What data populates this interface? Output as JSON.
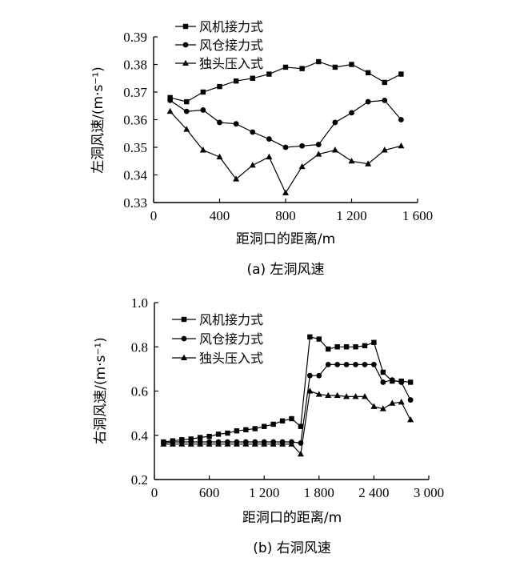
{
  "chart_data": [
    {
      "id": "left",
      "type": "line",
      "xlabel": "距洞口的距离/m",
      "ylabel": "左洞风速/(m·s⁻¹)",
      "caption": "(a) 左洞风速",
      "xlim": [
        0,
        1600
      ],
      "ylim": [
        0.33,
        0.39
      ],
      "xticks": [
        0,
        400,
        800,
        1200,
        1600
      ],
      "xtick_labels": [
        "0",
        "400",
        "800",
        "1 200",
        "1 600"
      ],
      "yticks": [
        0.33,
        0.34,
        0.35,
        0.36,
        0.37,
        0.38,
        0.39
      ],
      "ytick_labels": [
        "0.33",
        "0.34",
        "0.35",
        "0.36",
        "0.37",
        "0.38",
        "0.39"
      ],
      "legend_position": "top-left",
      "series": [
        {
          "name": "风机接力式",
          "marker": "square",
          "x": [
            100,
            200,
            300,
            400,
            500,
            600,
            700,
            800,
            900,
            1000,
            1100,
            1200,
            1300,
            1400,
            1500
          ],
          "y": [
            0.368,
            0.3665,
            0.37,
            0.372,
            0.374,
            0.375,
            0.3765,
            0.379,
            0.3785,
            0.381,
            0.379,
            0.38,
            0.377,
            0.3735,
            0.3765
          ]
        },
        {
          "name": "风仓接力式",
          "marker": "circle",
          "x": [
            100,
            200,
            300,
            400,
            500,
            600,
            700,
            800,
            900,
            1000,
            1100,
            1200,
            1300,
            1400,
            1500
          ],
          "y": [
            0.367,
            0.363,
            0.3635,
            0.359,
            0.3585,
            0.3555,
            0.353,
            0.35,
            0.3505,
            0.351,
            0.359,
            0.3625,
            0.3665,
            0.367,
            0.36
          ]
        },
        {
          "name": "独头压入式",
          "marker": "triangle",
          "x": [
            100,
            200,
            300,
            400,
            500,
            600,
            700,
            800,
            900,
            1000,
            1100,
            1200,
            1300,
            1400,
            1500
          ],
          "y": [
            0.363,
            0.3565,
            0.349,
            0.3465,
            0.3385,
            0.3435,
            0.3465,
            0.3335,
            0.343,
            0.3475,
            0.349,
            0.345,
            0.344,
            0.349,
            0.3505
          ]
        }
      ]
    },
    {
      "id": "right",
      "type": "line",
      "xlabel": "距洞口的距离/m",
      "ylabel": "右洞风速/(m·s⁻¹)",
      "caption": "(b) 右洞风速",
      "xlim": [
        0,
        3000
      ],
      "ylim": [
        0.2,
        1.0
      ],
      "xticks": [
        0,
        600,
        1200,
        1800,
        2400,
        3000
      ],
      "xtick_labels": [
        "0",
        "600",
        "1 200",
        "1 800",
        "2 400",
        "3 000"
      ],
      "yticks": [
        0.2,
        0.4,
        0.6,
        0.8,
        1.0
      ],
      "ytick_labels": [
        "0.2",
        "0.4",
        "0.6",
        "0.8",
        "1.0"
      ],
      "legend_position": "top-center",
      "series": [
        {
          "name": "风机接力式",
          "marker": "square",
          "x": [
            100,
            200,
            300,
            400,
            500,
            600,
            700,
            800,
            900,
            1000,
            1100,
            1200,
            1300,
            1400,
            1500,
            1600,
            1700,
            1800,
            1900,
            2000,
            2100,
            2200,
            2300,
            2400,
            2500,
            2600,
            2700,
            2800
          ],
          "y": [
            0.37,
            0.375,
            0.38,
            0.383,
            0.39,
            0.395,
            0.405,
            0.41,
            0.42,
            0.425,
            0.43,
            0.44,
            0.45,
            0.465,
            0.475,
            0.44,
            0.845,
            0.835,
            0.79,
            0.8,
            0.8,
            0.8,
            0.805,
            0.82,
            0.685,
            0.645,
            0.645,
            0.64
          ]
        },
        {
          "name": "风仓接力式",
          "marker": "circle",
          "x": [
            100,
            200,
            300,
            400,
            500,
            600,
            700,
            800,
            900,
            1000,
            1100,
            1200,
            1300,
            1400,
            1500,
            1600,
            1700,
            1800,
            1900,
            2000,
            2100,
            2200,
            2300,
            2400,
            2500,
            2600,
            2700,
            2800
          ],
          "y": [
            0.365,
            0.37,
            0.37,
            0.37,
            0.37,
            0.37,
            0.37,
            0.37,
            0.37,
            0.37,
            0.37,
            0.37,
            0.37,
            0.37,
            0.37,
            0.365,
            0.67,
            0.67,
            0.72,
            0.72,
            0.72,
            0.72,
            0.72,
            0.72,
            0.64,
            0.65,
            0.64,
            0.56
          ]
        },
        {
          "name": "独头压入式",
          "marker": "triangle",
          "x": [
            100,
            200,
            300,
            400,
            500,
            600,
            700,
            800,
            900,
            1000,
            1100,
            1200,
            1300,
            1400,
            1500,
            1600,
            1700,
            1800,
            1900,
            2000,
            2100,
            2200,
            2300,
            2400,
            2500,
            2600,
            2700,
            2800
          ],
          "y": [
            0.36,
            0.36,
            0.36,
            0.36,
            0.36,
            0.36,
            0.36,
            0.36,
            0.36,
            0.36,
            0.36,
            0.36,
            0.36,
            0.36,
            0.36,
            0.315,
            0.6,
            0.585,
            0.58,
            0.58,
            0.575,
            0.575,
            0.575,
            0.53,
            0.52,
            0.545,
            0.55,
            0.47
          ]
        }
      ]
    }
  ]
}
